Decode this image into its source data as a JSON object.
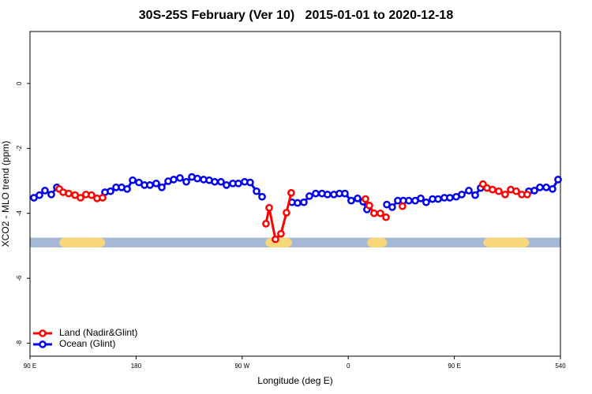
{
  "chart_data": {
    "type": "line",
    "title": "30S-25S February (Ver 10)   2015-01-01 to 2020-12-18",
    "xlabel": "Longitude (deg E)",
    "ylabel": "XCO2 - MLO trend (ppm)",
    "xlim": [
      90,
      540
    ],
    "ylim": [
      -8.4,
      1.6
    ],
    "xticks": [
      {
        "value": 90,
        "label": "90 E"
      },
      180,
      {
        "value": 270,
        "label": "90 W"
      },
      {
        "value": 360,
        "label": "0"
      },
      {
        "value": 450,
        "label": "90 E"
      },
      540
    ],
    "yticks": [
      0,
      -2,
      -4,
      -6,
      -8
    ],
    "legend": "bottom-left",
    "mask_band": {
      "ylim": [
        -5.05,
        -4.75
      ],
      "color": "#a5b9d6",
      "land_color": "#f8d67a",
      "land": [
        [
          114.8,
          153.8
        ],
        [
          289.7,
          312.4
        ],
        [
          376,
          393
        ],
        [
          474.6,
          513.5
        ]
      ]
    },
    "series": [
      {
        "name": "Ocean (Glint)",
        "color": "#0000ee",
        "x": [
          93.3,
          98.0,
          102.7,
          108.1,
          112.8,
          null,
          153.6,
          158.3,
          163.0,
          167.7,
          172.4,
          177.1,
          182.4,
          187.1,
          191.8,
          197.1,
          201.8,
          207.2,
          211.9,
          217.2,
          222.6,
          227.3,
          232.0,
          237.3,
          242.0,
          246.7,
          252.0,
          256.7,
          262.1,
          266.8,
          272.1,
          276.8,
          282.2,
          286.9,
          null,
          312.3,
          317.0,
          322.3,
          327.0,
          332.4,
          337.7,
          342.4,
          347.8,
          352.5,
          357.2,
          362.5,
          367.9,
          372.6,
          375.9,
          null,
          392.7,
          397.3,
          402.0,
          406.7,
          411.4,
          416.8,
          421.5,
          426.1,
          431.5,
          436.2,
          441.5,
          446.2,
          451.6,
          456.3,
          462.3,
          467.7,
          472.3,
          null,
          513.2,
          517.9,
          522.6,
          528.0,
          533.3,
          538.0
        ],
        "values": [
          -3.52,
          -3.44,
          -3.3,
          -3.42,
          -3.2,
          null,
          -3.35,
          -3.32,
          -3.2,
          -3.2,
          -3.25,
          -2.98,
          -3.05,
          -3.13,
          -3.13,
          -3.08,
          -3.2,
          -3.01,
          -2.96,
          -2.91,
          -3.03,
          -2.88,
          -2.93,
          -2.96,
          -2.98,
          -3.03,
          -3.03,
          -3.13,
          -3.08,
          -3.08,
          -3.03,
          -3.05,
          -3.32,
          -3.49,
          null,
          -3.66,
          -3.68,
          -3.66,
          -3.47,
          -3.39,
          -3.39,
          -3.42,
          -3.42,
          -3.39,
          -3.39,
          -3.61,
          -3.54,
          -3.64,
          -3.88,
          null,
          -3.73,
          -3.81,
          -3.61,
          -3.61,
          -3.61,
          -3.61,
          -3.54,
          -3.66,
          -3.56,
          -3.56,
          -3.52,
          -3.52,
          -3.49,
          -3.42,
          -3.3,
          -3.44,
          -3.22,
          null,
          -3.32,
          -3.3,
          -3.2,
          -3.2,
          -3.25,
          -2.96
        ]
      },
      {
        "name": "Land (Nadir&Glint)",
        "color": "#ff0000",
        "x": [
          114.8,
          118.1,
          122.8,
          128.2,
          132.9,
          137.5,
          142.2,
          146.9,
          151.6,
          null,
          290.2,
          292.9,
          298.2,
          302.9,
          307.6,
          311.6,
          null,
          374.6,
          377.9,
          381.9,
          387.3,
          392.0,
          null,
          406.0,
          null,
          474.3,
          477.7,
          482.4,
          487.7,
          493.1,
          497.8,
          502.5,
          507.2,
          511.8
        ],
        "values": [
          -3.25,
          -3.35,
          -3.39,
          -3.44,
          -3.52,
          -3.42,
          -3.44,
          -3.54,
          -3.52,
          null,
          -4.32,
          -3.83,
          -4.8,
          -4.63,
          -3.98,
          -3.37,
          null,
          -3.56,
          -3.76,
          -4.0,
          -4.0,
          -4.12,
          null,
          -3.78,
          null,
          -3.1,
          -3.22,
          -3.27,
          -3.32,
          -3.42,
          -3.27,
          -3.32,
          -3.42,
          -3.42
        ]
      }
    ]
  }
}
